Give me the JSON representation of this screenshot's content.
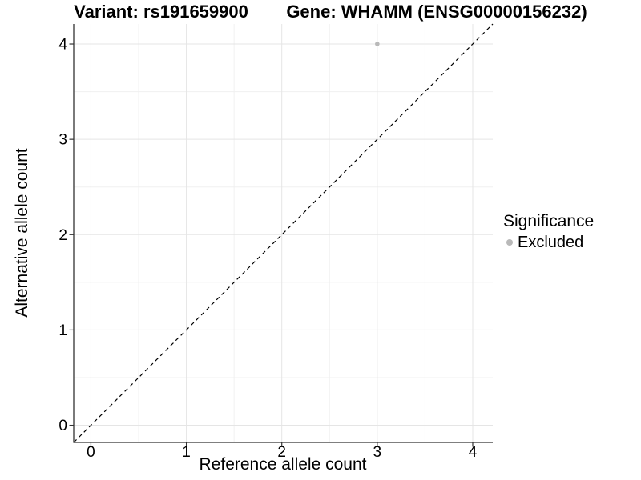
{
  "titles": {
    "left": "Variant: rs191659900",
    "right": "Gene: WHAMM (ENSG00000156232)"
  },
  "axes": {
    "x_label": "Reference allele count",
    "y_label": "Alternative allele count"
  },
  "legend": {
    "title": "Significance",
    "entries": [
      {
        "label": "Excluded",
        "color": "#b9b9b9",
        "marker": "circle"
      }
    ]
  },
  "chart_data": {
    "type": "scatter",
    "title": "Variant: rs191659900   Gene: WHAMM (ENSG00000156232)",
    "xlabel": "Reference allele count",
    "ylabel": "Alternative allele count",
    "xticks": [
      0,
      1,
      2,
      3,
      4
    ],
    "yticks": [
      0,
      1,
      2,
      3,
      4
    ],
    "xlim": [
      -0.18,
      4.21
    ],
    "ylim": [
      -0.18,
      4.21
    ],
    "minor_ticks_x": [
      0.5,
      1.5,
      2.5,
      3.5
    ],
    "minor_ticks_y": [
      0.5,
      1.5,
      2.5,
      3.5
    ],
    "grid": true,
    "legend_position": "right",
    "series": [
      {
        "name": "Excluded",
        "color": "#b9b9b9",
        "points": [
          {
            "x": 3,
            "y": 4
          }
        ]
      }
    ],
    "reference_line": {
      "style": "dashed",
      "slope": 1,
      "intercept": 0,
      "color": "#000000"
    },
    "colors": {
      "background": "#ffffff",
      "grid_major": "#e5e5e5",
      "grid_minor": "#f0f0f0",
      "axis_line": "#333333",
      "tick": "#333333",
      "text": "#000000",
      "point": "#b9b9b9"
    }
  }
}
